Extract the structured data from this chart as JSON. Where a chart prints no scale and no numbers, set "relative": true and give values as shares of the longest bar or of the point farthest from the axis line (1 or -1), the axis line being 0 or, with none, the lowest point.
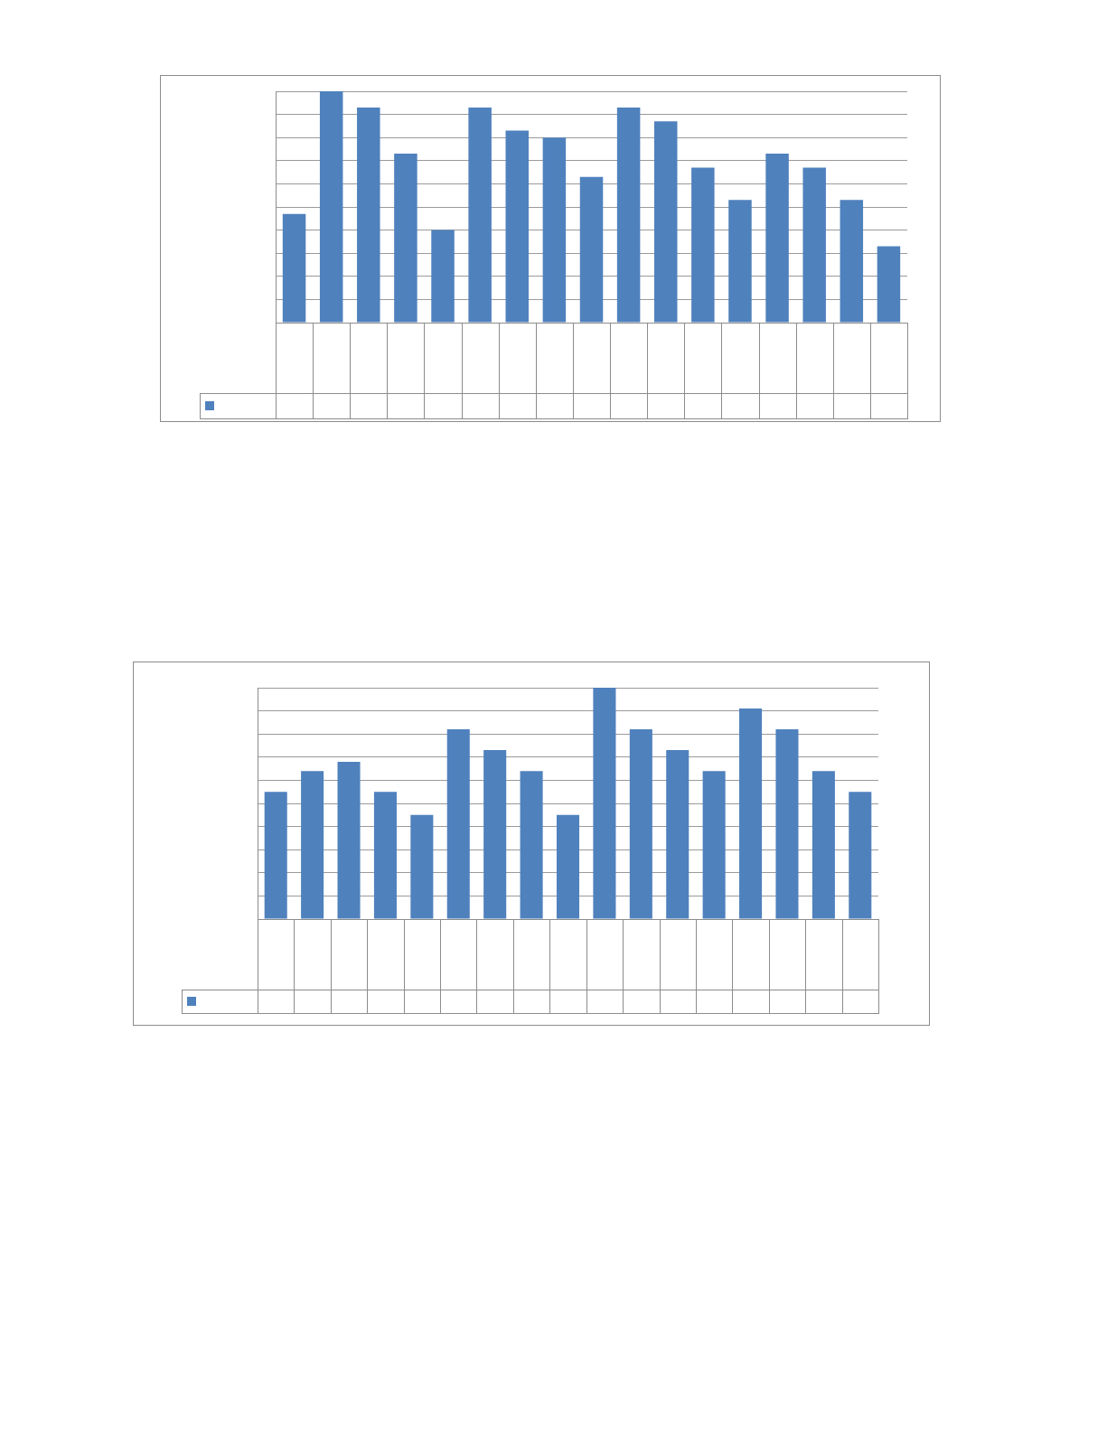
{
  "chart_data": [
    {
      "type": "bar",
      "relative": true,
      "grid": "y",
      "color": "#4f81bd",
      "categories": [
        null,
        null,
        null,
        null,
        null,
        null,
        null,
        null,
        null,
        null,
        null,
        null,
        null,
        null,
        null,
        null,
        null
      ],
      "values": [
        0.47,
        1,
        0.93,
        0.73,
        0.4,
        0.93,
        0.83,
        0.8,
        0.63,
        0.93,
        0.87,
        0.67,
        0.53,
        0.73,
        0.67,
        0.53,
        0.33
      ]
    },
    {
      "type": "bar",
      "relative": true,
      "grid": "y",
      "color": "#4f81bd",
      "categories": [
        null,
        null,
        null,
        null,
        null,
        null,
        null,
        null,
        null,
        null,
        null,
        null,
        null,
        null,
        null,
        null,
        null
      ],
      "values": [
        0.55,
        0.64,
        0.68,
        0.55,
        0.45,
        0.82,
        0.73,
        0.64,
        0.45,
        1,
        0.82,
        0.73,
        0.64,
        0.91,
        0.82,
        0.64,
        0.55
      ]
    }
  ]
}
